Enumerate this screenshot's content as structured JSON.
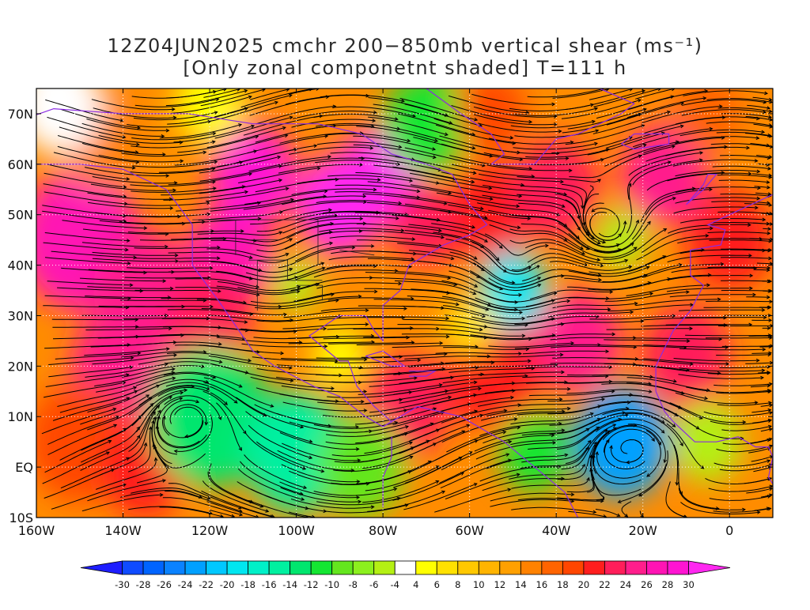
{
  "title": {
    "line1": "12Z04JUN2025 cmchr 200−850mb vertical shear (ms⁻¹)",
    "line2": "[Only zonal componetnt shaded] T=111 h"
  },
  "map": {
    "lon_range": [
      -160,
      10
    ],
    "lat_range": [
      -10,
      75
    ],
    "x_axis_labels": [
      {
        "lon": -160,
        "text": "160W"
      },
      {
        "lon": -140,
        "text": "140W"
      },
      {
        "lon": -120,
        "text": "120W"
      },
      {
        "lon": -100,
        "text": "100W"
      },
      {
        "lon": -80,
        "text": "80W"
      },
      {
        "lon": -60,
        "text": "60W"
      },
      {
        "lon": -40,
        "text": "40W"
      },
      {
        "lon": -20,
        "text": "20W"
      },
      {
        "lon": 0,
        "text": "0"
      }
    ],
    "y_axis_labels": [
      {
        "lat": 70,
        "text": "70N"
      },
      {
        "lat": 60,
        "text": "60N"
      },
      {
        "lat": 50,
        "text": "50N"
      },
      {
        "lat": 40,
        "text": "40N"
      },
      {
        "lat": 30,
        "text": "30N"
      },
      {
        "lat": 20,
        "text": "20N"
      },
      {
        "lat": 10,
        "text": "10N"
      },
      {
        "lat": 0,
        "text": "EQ"
      },
      {
        "lat": -10,
        "text": "10S"
      }
    ],
    "field_blobs": [
      {
        "lon": -150,
        "lat": 45,
        "val": 26,
        "r": 14
      },
      {
        "lon": -135,
        "lat": 35,
        "val": 24,
        "r": 12
      },
      {
        "lon": -140,
        "lat": 20,
        "val": 24,
        "r": 12
      },
      {
        "lon": -150,
        "lat": 5,
        "val": 18,
        "r": 12
      },
      {
        "lon": -135,
        "lat": 0,
        "val": 20,
        "r": 10
      },
      {
        "lon": -115,
        "lat": 42,
        "val": 26,
        "r": 10
      },
      {
        "lon": -120,
        "lat": 30,
        "val": 22,
        "r": 10
      },
      {
        "lon": -110,
        "lat": 58,
        "val": 28,
        "r": 10
      },
      {
        "lon": -90,
        "lat": 52,
        "val": 30,
        "r": 10
      },
      {
        "lon": -80,
        "lat": 58,
        "val": 30,
        "r": 10
      },
      {
        "lon": -70,
        "lat": 48,
        "val": 22,
        "r": 8
      },
      {
        "lon": -55,
        "lat": 50,
        "val": 20,
        "r": 10
      },
      {
        "lon": -40,
        "lat": 55,
        "val": 22,
        "r": 10
      },
      {
        "lon": -15,
        "lat": 58,
        "val": 24,
        "r": 10
      },
      {
        "lon": 0,
        "lat": 45,
        "val": 20,
        "r": 10
      },
      {
        "lon": -75,
        "lat": 12,
        "val": 22,
        "r": 10
      },
      {
        "lon": -55,
        "lat": 20,
        "val": 20,
        "r": 12
      },
      {
        "lon": -35,
        "lat": 25,
        "val": 24,
        "r": 10
      },
      {
        "lon": -10,
        "lat": 22,
        "val": 22,
        "r": 10
      },
      {
        "lon": -145,
        "lat": 65,
        "val": 14,
        "r": 10
      },
      {
        "lon": -120,
        "lat": 10,
        "val": -14,
        "r": 14
      },
      {
        "lon": -100,
        "lat": 3,
        "val": -16,
        "r": 12
      },
      {
        "lon": -85,
        "lat": 0,
        "val": -10,
        "r": 10
      },
      {
        "lon": -25,
        "lat": 5,
        "val": -24,
        "r": 11
      },
      {
        "lon": -45,
        "lat": 3,
        "val": -12,
        "r": 8
      },
      {
        "lon": -50,
        "lat": 35,
        "val": -20,
        "r": 8
      },
      {
        "lon": -25,
        "lat": 45,
        "val": -6,
        "r": 6
      },
      {
        "lon": -70,
        "lat": 68,
        "val": -12,
        "r": 10
      },
      {
        "lon": -100,
        "lat": 36,
        "val": -6,
        "r": 5
      },
      {
        "lon": -5,
        "lat": 5,
        "val": -6,
        "r": 8
      },
      {
        "lon": -155,
        "lat": 72,
        "val": 2,
        "r": 10
      },
      {
        "lon": -120,
        "lat": 72,
        "val": 4,
        "r": 8
      },
      {
        "lon": -60,
        "lat": 28,
        "val": 6,
        "r": 6
      },
      {
        "lon": -90,
        "lat": 22,
        "val": 4,
        "r": 6
      },
      {
        "lon": -5,
        "lat": 70,
        "val": 16,
        "r": 8
      },
      {
        "lon": -55,
        "lat": 70,
        "val": 18,
        "r": 8
      }
    ]
  },
  "colorbar": {
    "tick_labels": [
      "-30",
      "-28",
      "-26",
      "-24",
      "-22",
      "-20",
      "-18",
      "-16",
      "-14",
      "-12",
      "-10",
      "-8",
      "-6",
      "-4",
      "4",
      "6",
      "8",
      "10",
      "12",
      "14",
      "16",
      "18",
      "20",
      "22",
      "24",
      "26",
      "28",
      "30"
    ],
    "colors": [
      "#1e1eff",
      "#0f4bff",
      "#0064ff",
      "#0a82ff",
      "#00a0ff",
      "#00c8ff",
      "#00e6f0",
      "#00f0c8",
      "#00f0a0",
      "#00e66e",
      "#14e632",
      "#64e61e",
      "#8cf01e",
      "#b4f014",
      "#ffffff",
      "#ffff00",
      "#ffe100",
      "#ffc800",
      "#ffb400",
      "#ffa000",
      "#ff8200",
      "#ff6400",
      "#ff4600",
      "#ff1e1e",
      "#ff1e5a",
      "#ff1e8c",
      "#ff14b4",
      "#ff14d2",
      "#ff28f0"
    ]
  }
}
